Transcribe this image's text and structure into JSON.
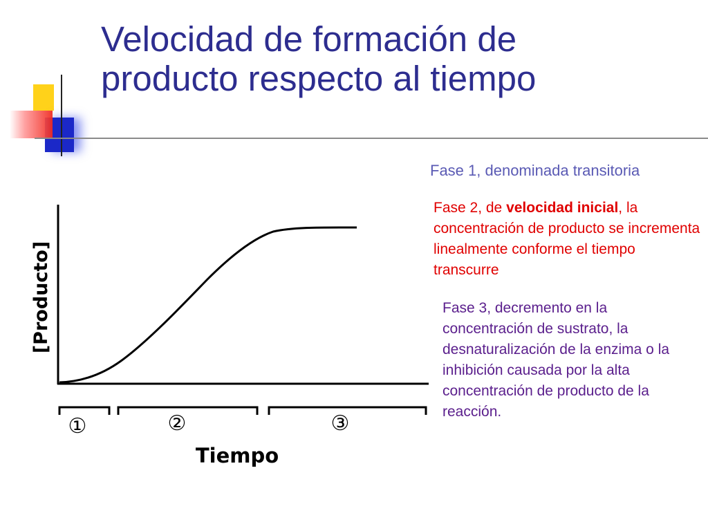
{
  "slide": {
    "title": "Velocidad de formación de\nproducto respecto al tiempo"
  },
  "notes": {
    "fase1": "Fase 1, denominada transitoria",
    "fase2_pre": "Fase 2, de ",
    "fase2_bold": "velocidad inicial",
    "fase2_post": ", la concentración de producto se incrementa linealmente conforme el tiempo transcurre",
    "fase3": "Fase 3, decremento en la concentración de sustrato, la desnaturalización de la enzima o la inhibición causada por la alta concentración de producto de la reacción."
  },
  "diagram": {
    "ylabel": "[Producto]",
    "xlabel": "Tiempo",
    "phases": [
      "①",
      "②",
      "③"
    ],
    "curve_color": "#000000"
  },
  "colors": {
    "title": "#2d2d8f",
    "fase1": "#5a5ab4",
    "fase2": "#e00000",
    "fase3": "#5a1e8c"
  }
}
